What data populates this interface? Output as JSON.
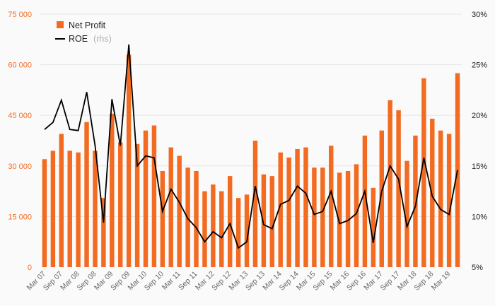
{
  "chart_data": {
    "type": "bar",
    "colors": {
      "bar": "#f26b21",
      "line": "#000000",
      "background": "#fafafa"
    },
    "legend": {
      "position": "top-left",
      "items": [
        {
          "label": "Net Profit",
          "sub": "",
          "marker": "square"
        },
        {
          "label": "ROE",
          "sub": "(rhs)",
          "marker": "line"
        }
      ]
    },
    "y_left": {
      "ticks": [
        "0",
        "15 000",
        "30 000",
        "45 000",
        "60 000",
        "75 000"
      ],
      "ylim": [
        0,
        75000
      ]
    },
    "y_right": {
      "ticks": [
        "5%",
        "10%",
        "15%",
        "20%",
        "25%",
        "30%"
      ],
      "ylim": [
        5,
        30
      ],
      "unit": "%"
    },
    "grid": true,
    "xtick_labels": [
      "Mar 07",
      "Sep 07",
      "Mar 08",
      "Sep 08",
      "Mar 09",
      "Sep 09",
      "Mar 10",
      "Sep 10",
      "Mar 11",
      "Sep 11",
      "Mar 12",
      "Sep 12",
      "Mar 13",
      "Sep 13",
      "Mar 14",
      "Sep 14",
      "Mar 15",
      "Sep 15",
      "Mar 16",
      "Sep 16",
      "Mar 17",
      "Sep 17",
      "Mar 18",
      "Sep 18",
      "Mar 19"
    ],
    "series": [
      {
        "name": "Net Profit",
        "axis": "left",
        "type": "bar",
        "values": [
          32000,
          34500,
          39500,
          34500,
          34000,
          43000,
          34500,
          20500,
          45500,
          37000,
          63000,
          36500,
          40500,
          42000,
          28500,
          35500,
          33000,
          29500,
          28500,
          22500,
          24500,
          22500,
          27000,
          20500,
          21500,
          37500,
          27500,
          27000,
          34000,
          32500,
          35000,
          35500,
          29500,
          29500,
          36000,
          28000,
          28500,
          30500,
          39000,
          23500,
          40500,
          49500,
          46500,
          31500,
          39000,
          56000,
          44000,
          40500,
          39500,
          57500
        ]
      },
      {
        "name": "ROE",
        "axis": "right",
        "type": "line",
        "values": [
          18.6,
          19.3,
          21.5,
          18.6,
          18.5,
          22.3,
          17.0,
          9.4,
          21.6,
          17.0,
          27.0,
          15.0,
          16.0,
          15.8,
          10.5,
          12.7,
          11.4,
          9.8,
          8.9,
          7.5,
          8.5,
          7.9,
          9.3,
          6.9,
          7.5,
          13.0,
          9.2,
          8.8,
          11.2,
          11.6,
          13.0,
          12.3,
          10.2,
          10.5,
          12.5,
          9.3,
          9.6,
          10.3,
          12.5,
          7.4,
          12.5,
          15.0,
          13.7,
          9.0,
          11.0,
          15.8,
          12.0,
          10.7,
          10.2,
          14.6
        ]
      }
    ]
  }
}
